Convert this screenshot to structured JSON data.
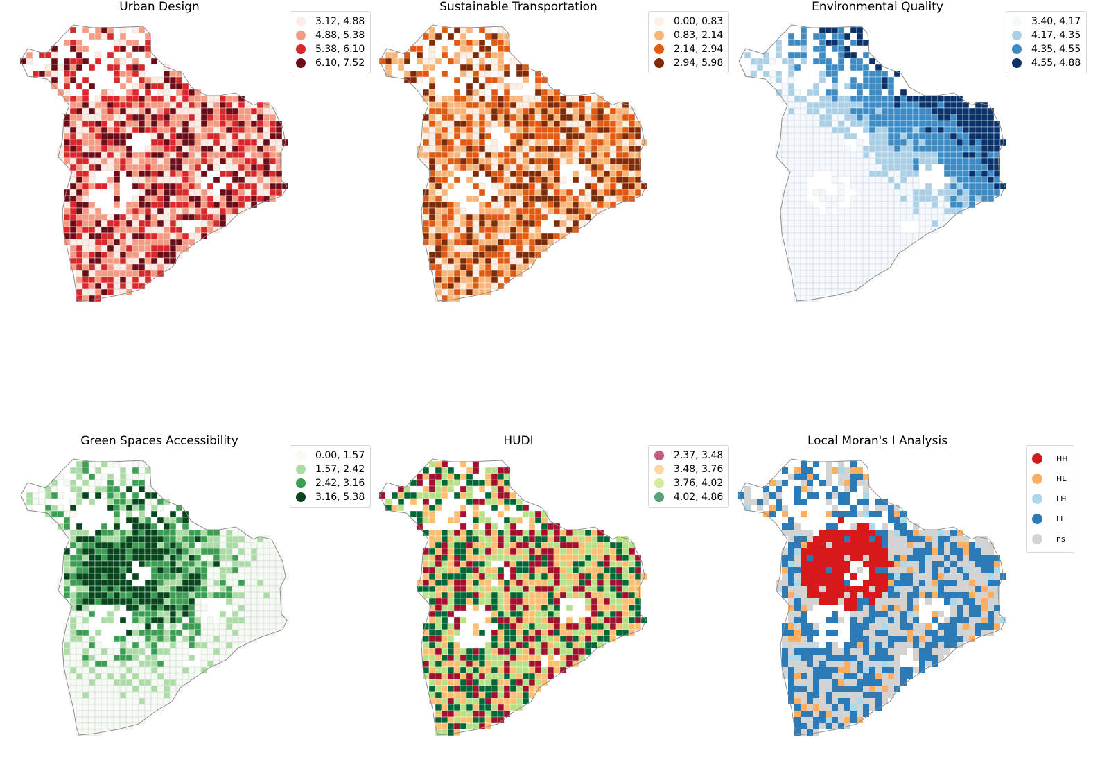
{
  "figure": {
    "panels": [
      {
        "title": "Urban Design",
        "legend": [
          {
            "label": "3.12, 4.88",
            "color": "#fdece4"
          },
          {
            "label": "4.88, 5.38",
            "color": "#f59b84"
          },
          {
            "label": "5.38, 6.10",
            "color": "#d7282b"
          },
          {
            "label": "6.10, 7.52",
            "color": "#6b0d18"
          }
        ]
      },
      {
        "title": "Sustainable Transportation",
        "legend": [
          {
            "label": "0.00, 0.83",
            "color": "#fdefe3"
          },
          {
            "label": "0.83, 2.14",
            "color": "#f8b57a"
          },
          {
            "label": "2.14, 2.94",
            "color": "#e05a12"
          },
          {
            "label": "2.94, 5.98",
            "color": "#7f2b07"
          }
        ]
      },
      {
        "title": "Environmental Quality",
        "legend": [
          {
            "label": "3.40, 4.17",
            "color": "#f4f9fe"
          },
          {
            "label": "4.17, 4.35",
            "color": "#abcfe4"
          },
          {
            "label": "4.35, 4.55",
            "color": "#3e8ac3"
          },
          {
            "label": "4.55, 4.88",
            "color": "#0b3169"
          }
        ]
      },
      {
        "title": "Green Spaces Accessibility",
        "legend": [
          {
            "label": "0.00, 1.57",
            "color": "#f5fbf2"
          },
          {
            "label": "1.57, 2.42",
            "color": "#acdca5"
          },
          {
            "label": "2.42, 3.16",
            "color": "#3a9f53"
          },
          {
            "label": "3.16, 5.38",
            "color": "#07461d"
          }
        ]
      },
      {
        "title": "HUDI",
        "legend": [
          {
            "label": "2.37, 3.48",
            "color": "#c45a7b"
          },
          {
            "label": "3.48, 3.76",
            "color": "#fbd7a4"
          },
          {
            "label": "3.76, 4.02",
            "color": "#d5ec9e"
          },
          {
            "label": "4.02, 4.86",
            "color": "#5b9e79"
          }
        ]
      },
      {
        "title": "Local Moran's I Analysis",
        "legend": [
          {
            "label": "HH",
            "color": "#d7191c"
          },
          {
            "label": "HL",
            "color": "#fdae61"
          },
          {
            "label": "LH",
            "color": "#abd9e9"
          },
          {
            "label": "LL",
            "color": "#2c7bb6"
          },
          {
            "label": "ns",
            "color": "#d3d3d3"
          }
        ]
      }
    ]
  },
  "map_palettes": [
    [
      "#fdece4",
      "#f59b84",
      "#d7282b",
      "#6b0d18"
    ],
    [
      "#fdefe3",
      "#f8b57a",
      "#e05a12",
      "#7f2b07"
    ],
    [
      "#f4f9fe",
      "#abcfe4",
      "#3e8ac3",
      "#0b3169"
    ],
    [
      "#f5fbf2",
      "#acdca5",
      "#3a9f53",
      "#07461d"
    ],
    [
      "#a50f2d",
      "#fdbf6f",
      "#b8e186",
      "#006837"
    ],
    [
      "#d7191c",
      "#fdae61",
      "#abd9e9",
      "#2c7bb6",
      "#d3d3d3"
    ]
  ]
}
